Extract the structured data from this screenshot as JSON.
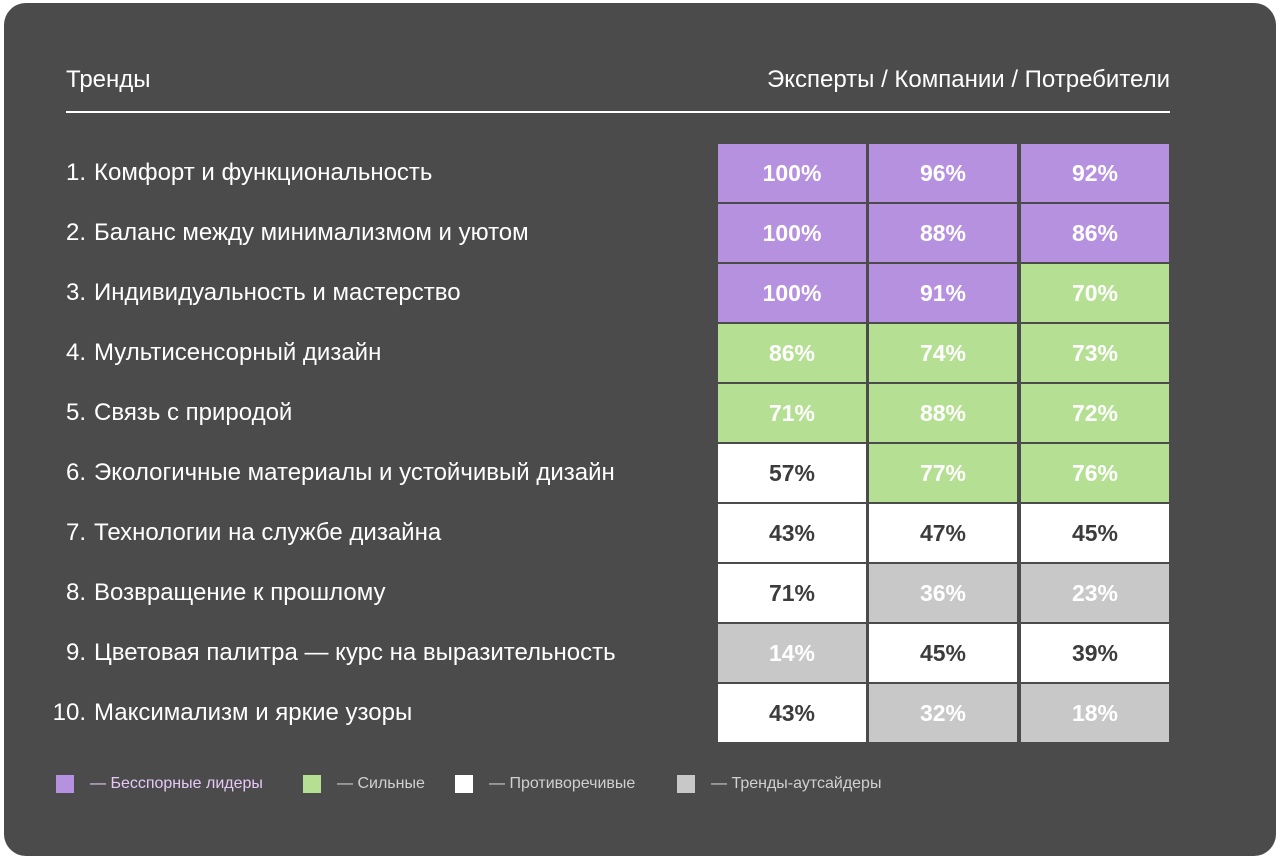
{
  "header": {
    "left": "Тренды",
    "right": "Эксперты / Компании / Потребители"
  },
  "colors": {
    "background": "#4b4b4b",
    "leader": "#b591e0",
    "strong": "#b5e093",
    "controversial": "#ffffff",
    "outsider": "#c8c8c8"
  },
  "chart_data": {
    "type": "table",
    "columns": [
      "Эксперты",
      "Компании",
      "Потребители"
    ],
    "rows": [
      {
        "num": "1.",
        "label": "Комфорт и функциональность",
        "values": [
          "100%",
          "96%",
          "92%"
        ],
        "categories": [
          "leader",
          "leader",
          "leader"
        ]
      },
      {
        "num": "2.",
        "label": "Баланс между минимализмом и уютом",
        "values": [
          "100%",
          "88%",
          "86%"
        ],
        "categories": [
          "leader",
          "leader",
          "leader"
        ]
      },
      {
        "num": "3.",
        "label": "Индивидуальность и мастерство",
        "values": [
          "100%",
          "91%",
          "70%"
        ],
        "categories": [
          "leader",
          "leader",
          "strong"
        ]
      },
      {
        "num": "4.",
        "label": "Мультисенсорный дизайн",
        "values": [
          "86%",
          "74%",
          "73%"
        ],
        "categories": [
          "strong",
          "strong",
          "strong"
        ]
      },
      {
        "num": "5.",
        "label": "Связь с природой",
        "values": [
          "71%",
          "88%",
          "72%"
        ],
        "categories": [
          "strong",
          "strong",
          "strong"
        ]
      },
      {
        "num": "6.",
        "label": "Экологичные материалы и устойчивый дизайн",
        "values": [
          "57%",
          "77%",
          "76%"
        ],
        "categories": [
          "controversial",
          "strong",
          "strong"
        ]
      },
      {
        "num": "7.",
        "label": "Технологии на службе дизайна",
        "values": [
          "43%",
          "47%",
          "45%"
        ],
        "categories": [
          "controversial",
          "controversial",
          "controversial"
        ]
      },
      {
        "num": "8.",
        "label": "Возвращение к прошлому",
        "values": [
          "71%",
          "36%",
          "23%"
        ],
        "categories": [
          "controversial",
          "outsider",
          "outsider"
        ]
      },
      {
        "num": "9.",
        "label": "Цветовая палитра — курс на выразительность",
        "values": [
          "14%",
          "45%",
          "39%"
        ],
        "categories": [
          "outsider",
          "controversial",
          "controversial"
        ]
      },
      {
        "num": "10.",
        "label": "Максимализм и яркие узоры",
        "values": [
          "43%",
          "32%",
          "18%"
        ],
        "categories": [
          "controversial",
          "outsider",
          "outsider"
        ]
      }
    ],
    "legend": [
      {
        "key": "leader",
        "label": "— Бесспорные лидеры",
        "text_color": "#e6c8f7"
      },
      {
        "key": "strong",
        "label": "— Сильные",
        "text_color": "#d0d0d0"
      },
      {
        "key": "controversial",
        "label": "— Противоречивые",
        "text_color": "#d0d0d0"
      },
      {
        "key": "outsider",
        "label": "— Тренды-аутсайдеры",
        "text_color": "#d0d0d0"
      }
    ],
    "legend_placement": "bottom-left"
  }
}
